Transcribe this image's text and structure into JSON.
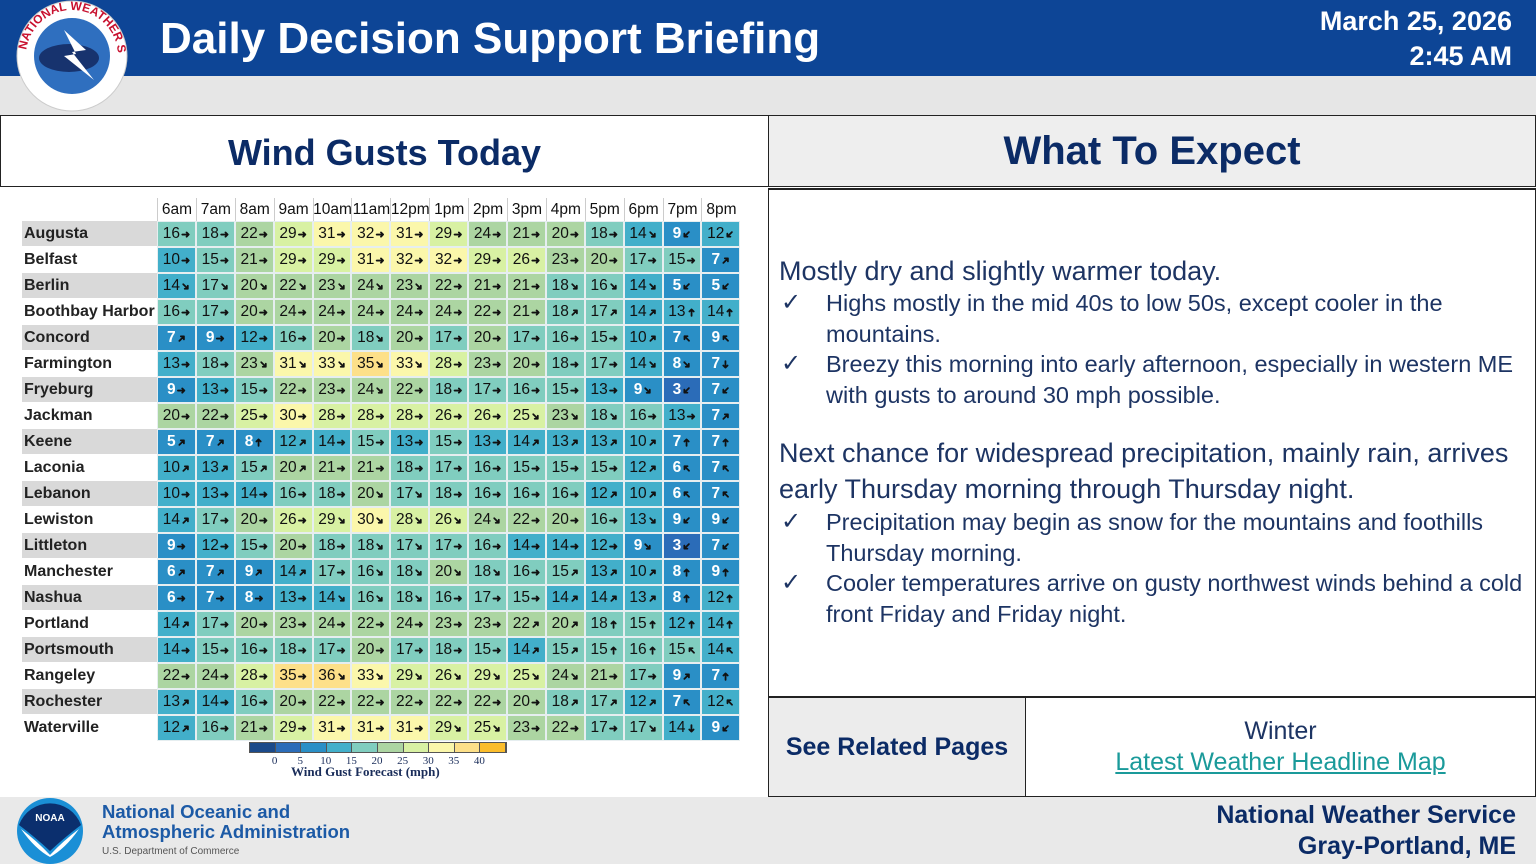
{
  "header": {
    "title": "Daily Decision Support Briefing",
    "date": "March 25, 2026",
    "time": "2:45 AM",
    "logo_text": "NATIONAL WEATHER SERVICE"
  },
  "left": {
    "title": "Wind Gusts Today"
  },
  "right": {
    "title": "What To Expect",
    "sections": [
      {
        "lead": "Mostly dry and slightly warmer today.",
        "bullets": [
          "Highs mostly in the mid 40s to low 50s, except cooler in the mountains.",
          "Breezy this morning into early afternoon, especially in western ME with gusts to around 30 mph possible."
        ]
      },
      {
        "lead": "Next chance for widespread precipitation, mainly rain, arrives early Thursday morning through Thursday night.",
        "bullets": [
          "Precipitation may begin as snow for the mountains and foothills Thursday morning.",
          "Cooler temperatures arrive on gusty northwest winds behind a cold front Friday and Friday night."
        ]
      }
    ],
    "check_icon": "✓"
  },
  "related": {
    "label": "See Related Pages",
    "item": "Winter",
    "link": "Latest Weather Headline Map"
  },
  "footer": {
    "noaa_line1": "National Oceanic and",
    "noaa_line2": "Atmospheric Administration",
    "noaa_line3": "U.S. Department of Commerce",
    "noaa_logo": "NOAA",
    "nws_line1": "National Weather Service",
    "nws_line2": "Gray-Portland, ME"
  },
  "chart_data": {
    "type": "table",
    "hours": [
      "6am",
      "7am",
      "8am",
      "9am",
      "10am",
      "11am",
      "12pm",
      "1pm",
      "2pm",
      "3pm",
      "4pm",
      "5pm",
      "6pm",
      "7pm",
      "8pm"
    ],
    "rows": [
      {
        "name": "Augusta",
        "gusts": [
          16,
          18,
          22,
          29,
          31,
          32,
          31,
          29,
          24,
          21,
          20,
          18,
          14,
          9,
          12
        ],
        "dirs": [
          "E",
          "E",
          "E",
          "E",
          "E",
          "E",
          "E",
          "E",
          "E",
          "E",
          "E",
          "E",
          "SE",
          "SW",
          "SW"
        ]
      },
      {
        "name": "Belfast",
        "gusts": [
          10,
          15,
          21,
          29,
          29,
          31,
          32,
          32,
          29,
          26,
          23,
          20,
          17,
          15,
          7
        ],
        "dirs": [
          "E",
          "E",
          "E",
          "E",
          "E",
          "E",
          "E",
          "E",
          "E",
          "E",
          "E",
          "E",
          "E",
          "E",
          "NE"
        ]
      },
      {
        "name": "Berlin",
        "gusts": [
          14,
          17,
          20,
          22,
          23,
          24,
          23,
          22,
          21,
          21,
          18,
          16,
          14,
          5,
          5
        ],
        "dirs": [
          "SE",
          "SE",
          "SE",
          "SE",
          "SE",
          "SE",
          "SE",
          "E",
          "E",
          "E",
          "SE",
          "SE",
          "SE",
          "SW",
          "SW"
        ]
      },
      {
        "name": "Boothbay Harbor",
        "gusts": [
          16,
          17,
          20,
          24,
          24,
          24,
          24,
          24,
          22,
          21,
          18,
          17,
          14,
          13,
          14
        ],
        "dirs": [
          "E",
          "E",
          "E",
          "E",
          "E",
          "E",
          "E",
          "E",
          "E",
          "E",
          "NE",
          "NE",
          "NE",
          "N",
          "N"
        ]
      },
      {
        "name": "Concord",
        "gusts": [
          7,
          9,
          12,
          16,
          20,
          18,
          20,
          17,
          20,
          17,
          16,
          15,
          10,
          7,
          9
        ],
        "dirs": [
          "NE",
          "E",
          "E",
          "E",
          "E",
          "SE",
          "E",
          "E",
          "E",
          "E",
          "E",
          "E",
          "NE",
          "NW",
          "NW"
        ]
      },
      {
        "name": "Farmington",
        "gusts": [
          13,
          18,
          23,
          31,
          33,
          35,
          33,
          28,
          23,
          20,
          18,
          17,
          14,
          8,
          7
        ],
        "dirs": [
          "E",
          "E",
          "SE",
          "SE",
          "SE",
          "SE",
          "SE",
          "E",
          "E",
          "E",
          "E",
          "E",
          "SE",
          "SE",
          "S"
        ]
      },
      {
        "name": "Fryeburg",
        "gusts": [
          9,
          13,
          15,
          22,
          23,
          24,
          22,
          18,
          17,
          16,
          15,
          13,
          9,
          3,
          7
        ],
        "dirs": [
          "E",
          "E",
          "E",
          "E",
          "E",
          "SE",
          "E",
          "E",
          "E",
          "E",
          "E",
          "E",
          "SE",
          "SW",
          "SW"
        ]
      },
      {
        "name": "Jackman",
        "gusts": [
          20,
          22,
          25,
          30,
          28,
          28,
          28,
          26,
          26,
          25,
          23,
          18,
          16,
          13,
          7
        ],
        "dirs": [
          "E",
          "E",
          "E",
          "E",
          "E",
          "E",
          "E",
          "E",
          "E",
          "SE",
          "SE",
          "SE",
          "E",
          "E",
          "NE"
        ]
      },
      {
        "name": "Keene",
        "gusts": [
          5,
          7,
          8,
          12,
          14,
          15,
          13,
          15,
          13,
          14,
          13,
          13,
          10,
          7,
          7
        ],
        "dirs": [
          "NE",
          "NE",
          "N",
          "NE",
          "E",
          "E",
          "E",
          "E",
          "E",
          "NE",
          "NE",
          "NE",
          "NE",
          "N",
          "N"
        ]
      },
      {
        "name": "Laconia",
        "gusts": [
          10,
          13,
          15,
          20,
          21,
          21,
          18,
          17,
          16,
          15,
          15,
          15,
          12,
          6,
          7
        ],
        "dirs": [
          "NE",
          "NE",
          "NE",
          "NE",
          "E",
          "E",
          "E",
          "E",
          "E",
          "E",
          "E",
          "E",
          "NE",
          "NW",
          "NW"
        ]
      },
      {
        "name": "Lebanon",
        "gusts": [
          10,
          13,
          14,
          16,
          18,
          20,
          17,
          18,
          16,
          16,
          16,
          12,
          10,
          6,
          7
        ],
        "dirs": [
          "E",
          "E",
          "E",
          "E",
          "E",
          "SE",
          "SE",
          "E",
          "E",
          "E",
          "E",
          "NE",
          "NE",
          "NW",
          "NW"
        ]
      },
      {
        "name": "Lewiston",
        "gusts": [
          14,
          17,
          20,
          26,
          29,
          30,
          28,
          26,
          24,
          22,
          20,
          16,
          13,
          9,
          9
        ],
        "dirs": [
          "NE",
          "E",
          "E",
          "E",
          "SE",
          "SE",
          "SE",
          "SE",
          "SE",
          "E",
          "E",
          "E",
          "SE",
          "SW",
          "SW"
        ]
      },
      {
        "name": "Littleton",
        "gusts": [
          9,
          12,
          15,
          20,
          18,
          18,
          17,
          17,
          16,
          14,
          14,
          12,
          9,
          3,
          7
        ],
        "dirs": [
          "E",
          "E",
          "E",
          "E",
          "E",
          "SE",
          "SE",
          "E",
          "E",
          "E",
          "E",
          "E",
          "SE",
          "SW",
          "SW"
        ]
      },
      {
        "name": "Manchester",
        "gusts": [
          6,
          7,
          9,
          14,
          17,
          16,
          18,
          20,
          18,
          16,
          15,
          13,
          10,
          8,
          9
        ],
        "dirs": [
          "NE",
          "NE",
          "NE",
          "NE",
          "E",
          "SE",
          "SE",
          "SE",
          "SE",
          "E",
          "NE",
          "NE",
          "NE",
          "N",
          "N"
        ]
      },
      {
        "name": "Nashua",
        "gusts": [
          6,
          7,
          8,
          13,
          14,
          16,
          18,
          16,
          17,
          15,
          14,
          14,
          13,
          8,
          12
        ],
        "dirs": [
          "E",
          "E",
          "E",
          "E",
          "SE",
          "SE",
          "SE",
          "E",
          "E",
          "E",
          "NE",
          "NE",
          "NE",
          "N",
          "N"
        ]
      },
      {
        "name": "Portland",
        "gusts": [
          14,
          17,
          20,
          23,
          24,
          22,
          24,
          23,
          23,
          22,
          20,
          18,
          15,
          12,
          14
        ],
        "dirs": [
          "NE",
          "E",
          "E",
          "E",
          "E",
          "E",
          "E",
          "E",
          "E",
          "NE",
          "NE",
          "N",
          "N",
          "N",
          "N"
        ]
      },
      {
        "name": "Portsmouth",
        "gusts": [
          14,
          15,
          16,
          18,
          17,
          20,
          17,
          18,
          15,
          14,
          15,
          15,
          16,
          15,
          14
        ],
        "dirs": [
          "E",
          "E",
          "E",
          "E",
          "E",
          "E",
          "E",
          "E",
          "E",
          "NE",
          "NE",
          "N",
          "N",
          "NW",
          "NW"
        ]
      },
      {
        "name": "Rangeley",
        "gusts": [
          22,
          24,
          28,
          35,
          36,
          33,
          29,
          26,
          29,
          25,
          24,
          21,
          17,
          9,
          7
        ],
        "dirs": [
          "E",
          "E",
          "E",
          "E",
          "SE",
          "SE",
          "SE",
          "SE",
          "SE",
          "SE",
          "SE",
          "E",
          "E",
          "NE",
          "N"
        ]
      },
      {
        "name": "Rochester",
        "gusts": [
          13,
          14,
          16,
          20,
          22,
          22,
          22,
          22,
          22,
          20,
          18,
          17,
          12,
          7,
          12
        ],
        "dirs": [
          "NE",
          "E",
          "E",
          "E",
          "E",
          "E",
          "E",
          "E",
          "E",
          "E",
          "NE",
          "NE",
          "NE",
          "NW",
          "NW"
        ]
      },
      {
        "name": "Waterville",
        "gusts": [
          12,
          16,
          21,
          29,
          31,
          31,
          31,
          29,
          25,
          23,
          22,
          17,
          17,
          14,
          9
        ],
        "dirs": [
          "NE",
          "E",
          "E",
          "E",
          "E",
          "E",
          "E",
          "SE",
          "SE",
          "E",
          "E",
          "E",
          "SE",
          "S",
          "SW"
        ]
      }
    ],
    "legend": {
      "title": "Wind Gust Forecast (mph)",
      "ticks": [
        0,
        5,
        10,
        15,
        20,
        25,
        30,
        35,
        40
      ],
      "colors": [
        "#1b4a8a",
        "#2b6cb8",
        "#2a8fc6",
        "#42afca",
        "#80cdbf",
        "#acd5a2",
        "#d8f1a3",
        "#fbf7ab",
        "#fde089",
        "#fbbd2c"
      ]
    }
  }
}
